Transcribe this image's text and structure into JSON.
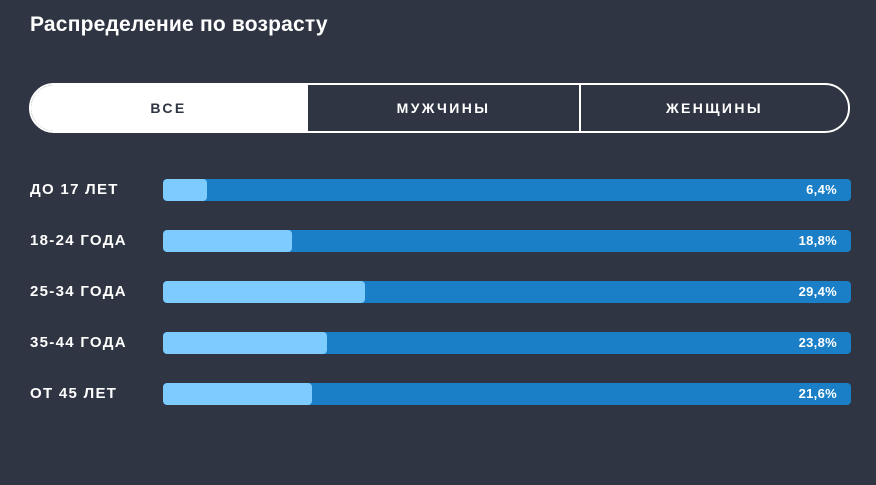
{
  "title": "Распределение по возрасту",
  "tabs": [
    {
      "label": "ВСЕ",
      "active": true
    },
    {
      "label": "МУЖЧИНЫ",
      "active": false
    },
    {
      "label": "ЖЕНЩИНЫ",
      "active": false
    }
  ],
  "colors": {
    "background": "#2f3542",
    "bar_track": "#1a7fc6",
    "bar_fill": "#7ecbff",
    "text": "#ffffff"
  },
  "age_groups": [
    {
      "label": "ДО 17 ЛЕТ",
      "value_text": "6,4%",
      "percent": 6.4
    },
    {
      "label": "18-24 ГОДА",
      "value_text": "18,8%",
      "percent": 18.8
    },
    {
      "label": "25-34 ГОДА",
      "value_text": "29,4%",
      "percent": 29.4
    },
    {
      "label": "35-44 ГОДА",
      "value_text": "23,8%",
      "percent": 23.8
    },
    {
      "label": "ОТ 45 ЛЕТ",
      "value_text": "21,6%",
      "percent": 21.6
    }
  ]
}
